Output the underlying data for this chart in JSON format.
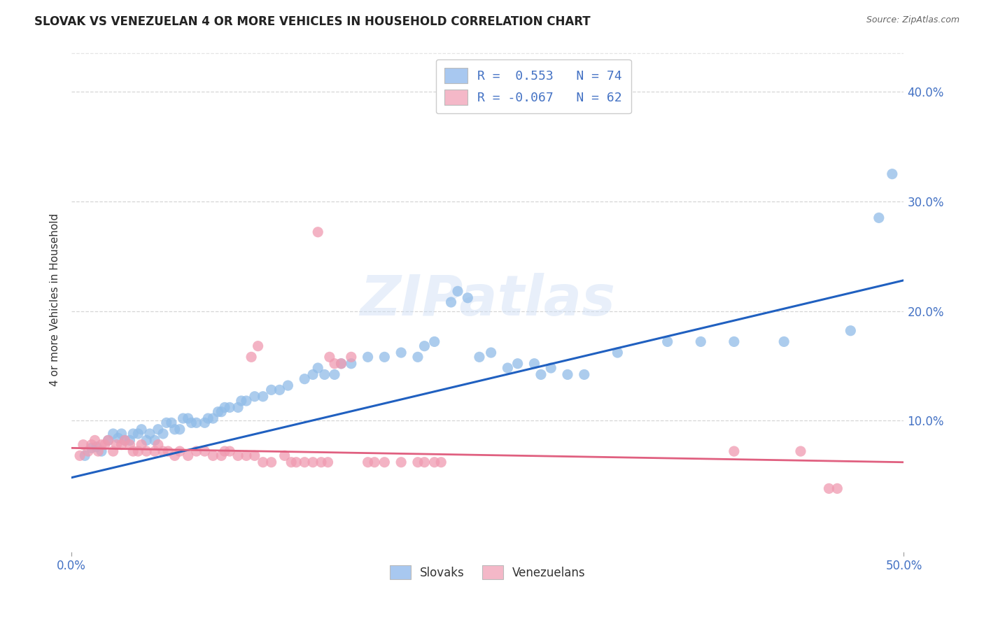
{
  "title": "SLOVAK VS VENEZUELAN 4 OR MORE VEHICLES IN HOUSEHOLD CORRELATION CHART",
  "source": "Source: ZipAtlas.com",
  "ylabel": "4 or more Vehicles in Household",
  "xlim": [
    0.0,
    0.5
  ],
  "ylim": [
    -0.02,
    0.44
  ],
  "xticks": [
    0.0,
    0.5
  ],
  "xtick_labels": [
    "0.0%",
    "50.0%"
  ],
  "yticks": [
    0.0,
    0.1,
    0.2,
    0.3,
    0.4
  ],
  "ytick_labels_right": [
    "",
    "10.0%",
    "20.0%",
    "30.0%",
    "40.0%"
  ],
  "grid_yticks": [
    0.1,
    0.2,
    0.3,
    0.4
  ],
  "legend_entries": [
    {
      "label": "R =  0.553   N = 74",
      "color": "#a8c8f0"
    },
    {
      "label": "R = -0.067   N = 62",
      "color": "#f4b8c8"
    }
  ],
  "legend_bottom": [
    {
      "label": "Slovaks",
      "color": "#a8c8f0"
    },
    {
      "label": "Venezuelans",
      "color": "#f4b8c8"
    }
  ],
  "slovak_color": "#90bce8",
  "venezuelan_color": "#f09ab0",
  "slovak_line_color": "#2060c0",
  "venezuelan_line_color": "#e06080",
  "watermark": "ZIPatlas",
  "background_color": "#ffffff",
  "grid_color": "#cccccc",
  "slovak_points": [
    [
      0.008,
      0.068
    ],
    [
      0.012,
      0.075
    ],
    [
      0.015,
      0.076
    ],
    [
      0.018,
      0.072
    ],
    [
      0.022,
      0.082
    ],
    [
      0.025,
      0.088
    ],
    [
      0.028,
      0.084
    ],
    [
      0.03,
      0.088
    ],
    [
      0.032,
      0.082
    ],
    [
      0.035,
      0.082
    ],
    [
      0.037,
      0.088
    ],
    [
      0.04,
      0.088
    ],
    [
      0.042,
      0.092
    ],
    [
      0.045,
      0.082
    ],
    [
      0.047,
      0.088
    ],
    [
      0.05,
      0.082
    ],
    [
      0.052,
      0.092
    ],
    [
      0.055,
      0.088
    ],
    [
      0.057,
      0.098
    ],
    [
      0.06,
      0.098
    ],
    [
      0.062,
      0.092
    ],
    [
      0.065,
      0.092
    ],
    [
      0.067,
      0.102
    ],
    [
      0.07,
      0.102
    ],
    [
      0.072,
      0.098
    ],
    [
      0.075,
      0.098
    ],
    [
      0.08,
      0.098
    ],
    [
      0.082,
      0.102
    ],
    [
      0.085,
      0.102
    ],
    [
      0.088,
      0.108
    ],
    [
      0.09,
      0.108
    ],
    [
      0.092,
      0.112
    ],
    [
      0.095,
      0.112
    ],
    [
      0.1,
      0.112
    ],
    [
      0.102,
      0.118
    ],
    [
      0.105,
      0.118
    ],
    [
      0.11,
      0.122
    ],
    [
      0.115,
      0.122
    ],
    [
      0.12,
      0.128
    ],
    [
      0.125,
      0.128
    ],
    [
      0.13,
      0.132
    ],
    [
      0.14,
      0.138
    ],
    [
      0.145,
      0.142
    ],
    [
      0.148,
      0.148
    ],
    [
      0.152,
      0.142
    ],
    [
      0.158,
      0.142
    ],
    [
      0.162,
      0.152
    ],
    [
      0.168,
      0.152
    ],
    [
      0.178,
      0.158
    ],
    [
      0.188,
      0.158
    ],
    [
      0.198,
      0.162
    ],
    [
      0.208,
      0.158
    ],
    [
      0.212,
      0.168
    ],
    [
      0.218,
      0.172
    ],
    [
      0.228,
      0.208
    ],
    [
      0.232,
      0.218
    ],
    [
      0.238,
      0.212
    ],
    [
      0.245,
      0.158
    ],
    [
      0.252,
      0.162
    ],
    [
      0.262,
      0.148
    ],
    [
      0.268,
      0.152
    ],
    [
      0.278,
      0.152
    ],
    [
      0.282,
      0.142
    ],
    [
      0.288,
      0.148
    ],
    [
      0.298,
      0.142
    ],
    [
      0.308,
      0.142
    ],
    [
      0.328,
      0.162
    ],
    [
      0.358,
      0.172
    ],
    [
      0.378,
      0.172
    ],
    [
      0.398,
      0.172
    ],
    [
      0.428,
      0.172
    ],
    [
      0.468,
      0.182
    ],
    [
      0.485,
      0.285
    ],
    [
      0.493,
      0.325
    ]
  ],
  "venezuelan_points": [
    [
      0.005,
      0.068
    ],
    [
      0.007,
      0.078
    ],
    [
      0.01,
      0.072
    ],
    [
      0.012,
      0.078
    ],
    [
      0.014,
      0.082
    ],
    [
      0.016,
      0.072
    ],
    [
      0.018,
      0.078
    ],
    [
      0.02,
      0.078
    ],
    [
      0.022,
      0.082
    ],
    [
      0.025,
      0.072
    ],
    [
      0.027,
      0.078
    ],
    [
      0.03,
      0.078
    ],
    [
      0.032,
      0.082
    ],
    [
      0.035,
      0.078
    ],
    [
      0.037,
      0.072
    ],
    [
      0.04,
      0.072
    ],
    [
      0.042,
      0.078
    ],
    [
      0.045,
      0.072
    ],
    [
      0.05,
      0.072
    ],
    [
      0.052,
      0.078
    ],
    [
      0.055,
      0.072
    ],
    [
      0.058,
      0.072
    ],
    [
      0.062,
      0.068
    ],
    [
      0.065,
      0.072
    ],
    [
      0.07,
      0.068
    ],
    [
      0.075,
      0.072
    ],
    [
      0.08,
      0.072
    ],
    [
      0.085,
      0.068
    ],
    [
      0.09,
      0.068
    ],
    [
      0.092,
      0.072
    ],
    [
      0.095,
      0.072
    ],
    [
      0.1,
      0.068
    ],
    [
      0.105,
      0.068
    ],
    [
      0.11,
      0.068
    ],
    [
      0.115,
      0.062
    ],
    [
      0.12,
      0.062
    ],
    [
      0.128,
      0.068
    ],
    [
      0.132,
      0.062
    ],
    [
      0.135,
      0.062
    ],
    [
      0.14,
      0.062
    ],
    [
      0.145,
      0.062
    ],
    [
      0.15,
      0.062
    ],
    [
      0.154,
      0.062
    ],
    [
      0.155,
      0.158
    ],
    [
      0.158,
      0.152
    ],
    [
      0.162,
      0.152
    ],
    [
      0.168,
      0.158
    ],
    [
      0.178,
      0.062
    ],
    [
      0.182,
      0.062
    ],
    [
      0.188,
      0.062
    ],
    [
      0.198,
      0.062
    ],
    [
      0.208,
      0.062
    ],
    [
      0.212,
      0.062
    ],
    [
      0.218,
      0.062
    ],
    [
      0.222,
      0.062
    ],
    [
      0.108,
      0.158
    ],
    [
      0.112,
      0.168
    ],
    [
      0.148,
      0.272
    ],
    [
      0.398,
      0.072
    ],
    [
      0.438,
      0.072
    ],
    [
      0.455,
      0.038
    ],
    [
      0.46,
      0.038
    ]
  ],
  "slovak_line": {
    "x0": 0.0,
    "y0": 0.048,
    "x1": 0.5,
    "y1": 0.228
  },
  "venezuelan_line": {
    "x0": 0.0,
    "y0": 0.075,
    "x1": 0.5,
    "y1": 0.062
  }
}
